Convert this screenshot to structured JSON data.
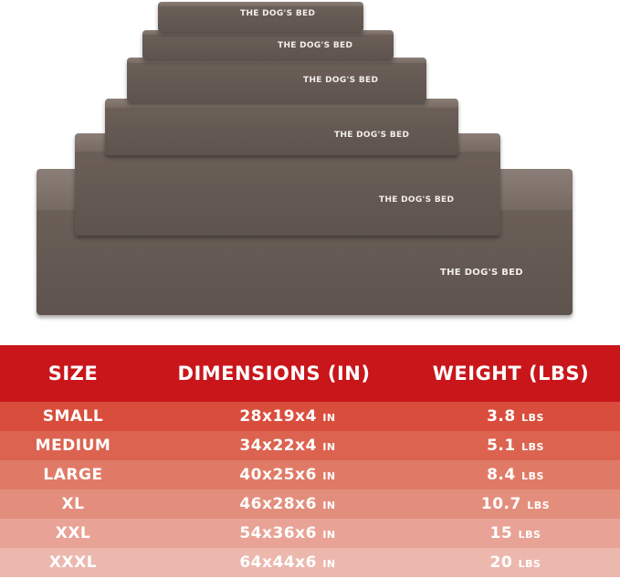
{
  "product": {
    "brand_label": "THE DOG'S BED",
    "bed_color": "#6e625b"
  },
  "table": {
    "headers": [
      "SIZE",
      "DIMENSIONS (IN)",
      "WEIGHT (LBS)"
    ],
    "header_color": "#c8161b",
    "rows": [
      {
        "size": "SMALL",
        "dims": "28x19x4",
        "dims_unit": "IN",
        "weight": "3.8",
        "weight_unit": "LBS",
        "color": "#d94d3c"
      },
      {
        "size": "MEDIUM",
        "dims": "34x22x4",
        "dims_unit": "IN",
        "weight": "5.1",
        "weight_unit": "LBS",
        "color": "#dc6350"
      },
      {
        "size": "LARGE",
        "dims": "40x25x6",
        "dims_unit": "IN",
        "weight": "8.4",
        "weight_unit": "LBS",
        "color": "#e07a66"
      },
      {
        "size": "XL",
        "dims": "46x28x6",
        "dims_unit": "IN",
        "weight": "10.7",
        "weight_unit": "LBS",
        "color": "#e38e7d"
      },
      {
        "size": "XXL",
        "dims": "54x36x6",
        "dims_unit": "IN",
        "weight": "15",
        "weight_unit": "LBS",
        "color": "#e8a396"
      },
      {
        "size": "XXXL",
        "dims": "64x44x6",
        "dims_unit": "IN",
        "weight": "20",
        "weight_unit": "LBS",
        "color": "#ecb8ae"
      }
    ]
  }
}
